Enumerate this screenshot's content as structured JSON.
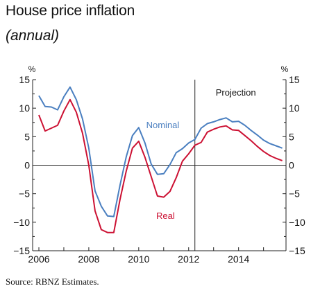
{
  "title": "House price inflation",
  "subtitle": "(annual)",
  "source": "Source: RBNZ Estimates.",
  "chart_data": {
    "type": "line",
    "ylim": [
      -15,
      15
    ],
    "xlim": [
      2005.75,
      2015.9
    ],
    "yunit_left": "%",
    "yunit_right": "%",
    "yticks": [
      15,
      10,
      5,
      0,
      -5,
      -10,
      -15
    ],
    "yticklabels": [
      "15",
      "10",
      "5",
      "0",
      "−5",
      "−10",
      "−15"
    ],
    "xtick_labels": [
      "2006",
      "2008",
      "2010",
      "2012",
      "2014"
    ],
    "xticks": [
      2006,
      2008,
      2010,
      2012,
      2014
    ],
    "projection_start": 2012.25,
    "projection_label": "Projection",
    "grid": false,
    "colors": {
      "Nominal": "#4a7fc0",
      "Real": "#cc1133",
      "axis": "#222222"
    },
    "series": [
      {
        "name": "Nominal",
        "label_pos": [
          2010.3,
          6.5
        ],
        "x": [
          2006.0,
          2006.25,
          2006.5,
          2006.75,
          2007.0,
          2007.25,
          2007.5,
          2007.75,
          2008.0,
          2008.25,
          2008.5,
          2008.75,
          2009.0,
          2009.25,
          2009.5,
          2009.75,
          2010.0,
          2010.25,
          2010.5,
          2010.75,
          2011.0,
          2011.25,
          2011.5,
          2011.75,
          2012.0,
          2012.25,
          2012.5,
          2012.75,
          2013.0,
          2013.25,
          2013.5,
          2013.75,
          2014.0,
          2014.25,
          2014.5,
          2014.75,
          2015.0,
          2015.25,
          2015.5,
          2015.75
        ],
        "values": [
          12.2,
          10.3,
          10.2,
          9.7,
          12.0,
          13.7,
          11.5,
          8.1,
          3.0,
          -4.5,
          -7.2,
          -8.9,
          -9.0,
          -3.5,
          1.5,
          5.2,
          6.6,
          3.9,
          0.2,
          -1.6,
          -1.5,
          0.1,
          2.2,
          2.9,
          3.9,
          4.5,
          6.5,
          7.3,
          7.6,
          8.0,
          8.3,
          7.6,
          7.7,
          7.0,
          6.1,
          5.3,
          4.4,
          3.8,
          3.4,
          3.0
        ]
      },
      {
        "name": "Real",
        "label_pos": [
          2010.7,
          -9.4
        ],
        "x": [
          2006.0,
          2006.25,
          2006.5,
          2006.75,
          2007.0,
          2007.25,
          2007.5,
          2007.75,
          2008.0,
          2008.25,
          2008.5,
          2008.75,
          2009.0,
          2009.25,
          2009.5,
          2009.75,
          2010.0,
          2010.25,
          2010.5,
          2010.75,
          2011.0,
          2011.25,
          2011.5,
          2011.75,
          2012.0,
          2012.25,
          2012.5,
          2012.75,
          2013.0,
          2013.25,
          2013.5,
          2013.75,
          2014.0,
          2014.25,
          2014.5,
          2014.75,
          2015.0,
          2015.25,
          2015.5,
          2015.75
        ],
        "values": [
          8.8,
          6.0,
          6.5,
          7.0,
          9.5,
          11.5,
          9.3,
          5.6,
          0.0,
          -8.0,
          -11.3,
          -11.8,
          -11.8,
          -6.0,
          -1.0,
          3.0,
          4.2,
          1.4,
          -2.0,
          -5.4,
          -5.6,
          -4.6,
          -2.2,
          0.7,
          2.0,
          3.5,
          4.0,
          5.8,
          6.3,
          6.7,
          6.9,
          6.2,
          6.1,
          5.2,
          4.3,
          3.3,
          2.4,
          1.7,
          1.2,
          0.8
        ]
      }
    ]
  }
}
